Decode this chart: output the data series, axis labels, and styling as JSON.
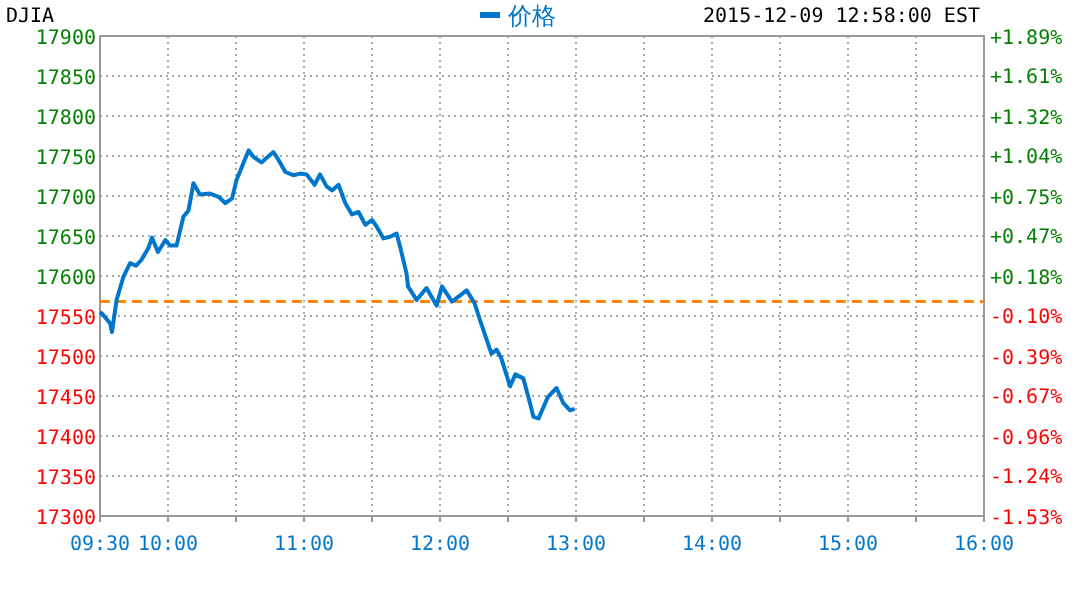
{
  "chart_data": {
    "type": "line",
    "title": "DJIA",
    "annotations": [
      "2015-12-09 12:58:00 EST"
    ],
    "legend": "top",
    "grid": true,
    "line_style": "solid",
    "xlim": [
      9.5,
      16
    ],
    "xticks": [
      {
        "value": 9.5,
        "label": "09:30"
      },
      {
        "value": 10,
        "label": "10:00"
      },
      {
        "value": 10.5,
        "label": null
      },
      {
        "value": 11,
        "label": "11:00"
      },
      {
        "value": 11.5,
        "label": null
      },
      {
        "value": 12,
        "label": "12:00"
      },
      {
        "value": 12.5,
        "label": null
      },
      {
        "value": 13,
        "label": "13:00"
      },
      {
        "value": 13.5,
        "label": null
      },
      {
        "value": 14,
        "label": "14:00"
      },
      {
        "value": 14.5,
        "label": null
      },
      {
        "value": 15,
        "label": "15:00"
      },
      {
        "value": 15.5,
        "label": null
      },
      {
        "value": 16,
        "label": "16:00"
      }
    ],
    "ylim": [
      17300,
      17900
    ],
    "yticks": [
      17300,
      17350,
      17400,
      17450,
      17500,
      17550,
      17600,
      17650,
      17700,
      17750,
      17800,
      17850,
      17900
    ],
    "y2lim": [
      -1.53,
      1.89
    ],
    "y2ticks": [
      {
        "value": -1.53,
        "label": "-1.53%"
      },
      {
        "value": -1.24,
        "label": "-1.24%"
      },
      {
        "value": -0.96,
        "label": "-0.96%"
      },
      {
        "value": -0.67,
        "label": "-0.67%"
      },
      {
        "value": -0.39,
        "label": "-0.39%"
      },
      {
        "value": -0.1,
        "label": "-0.10%"
      },
      {
        "value": 0.18,
        "label": "+0.18%"
      },
      {
        "value": 0.47,
        "label": "+0.47%"
      },
      {
        "value": 0.75,
        "label": "+0.75%"
      },
      {
        "value": 1.04,
        "label": "+1.04%"
      },
      {
        "value": 1.32,
        "label": "+1.32%"
      },
      {
        "value": 1.61,
        "label": "+1.61%"
      },
      {
        "value": 1.89,
        "label": "+1.89%"
      }
    ],
    "ref_lines": [
      {
        "axis": "y",
        "value": 17568,
        "color": "#ff8800",
        "line_style": "dashed"
      }
    ],
    "series": [
      {
        "name": "价格",
        "color": "#0077cc",
        "x": [
          9.5,
          9.515,
          9.574,
          9.588,
          9.622,
          9.672,
          9.721,
          9.765,
          9.804,
          9.853,
          9.882,
          9.926,
          9.981,
          10.015,
          10.063,
          10.113,
          10.151,
          10.187,
          10.235,
          10.309,
          10.372,
          10.422,
          10.471,
          10.504,
          10.554,
          10.593,
          10.628,
          10.687,
          10.735,
          10.775,
          10.813,
          10.863,
          10.922,
          10.971,
          11.019,
          11.078,
          11.118,
          11.166,
          11.206,
          11.254,
          11.304,
          11.353,
          11.401,
          11.451,
          11.5,
          11.534,
          11.584,
          11.632,
          11.681,
          11.706,
          11.754,
          11.765,
          11.828,
          11.901,
          11.975,
          12.015,
          12.088,
          12.196,
          12.254,
          12.294,
          12.378,
          12.416,
          12.451,
          12.515,
          12.554,
          12.613,
          12.662,
          12.687,
          12.725,
          12.794,
          12.857,
          12.907,
          12.956,
          12.99
        ],
        "values": [
          17555,
          17553,
          17541,
          17530,
          17570,
          17599,
          17616,
          17613,
          17620,
          17634,
          17648,
          17630,
          17645,
          17638,
          17638,
          17674,
          17682,
          17716,
          17702,
          17703,
          17699,
          17691,
          17697,
          17720,
          17741,
          17757,
          17749,
          17742,
          17749,
          17755,
          17745,
          17730,
          17726,
          17728,
          17727,
          17714,
          17727,
          17712,
          17707,
          17714,
          17691,
          17677,
          17680,
          17664,
          17670,
          17662,
          17647,
          17649,
          17653,
          17637,
          17603,
          17587,
          17570,
          17585,
          17563,
          17587,
          17568,
          17582,
          17566,
          17545,
          17503,
          17508,
          17497,
          17462,
          17477,
          17472,
          17441,
          17424,
          17422,
          17449,
          17460,
          17441,
          17432,
          17434
        ]
      }
    ]
  }
}
